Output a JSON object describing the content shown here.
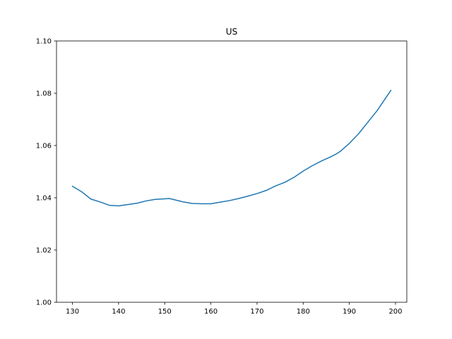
{
  "chart_data": {
    "type": "line",
    "title": "US",
    "xlabel": "",
    "ylabel": "",
    "xlim": [
      126.55,
      202.45
    ],
    "ylim": [
      1.0,
      1.1
    ],
    "xticks": [
      130,
      140,
      150,
      160,
      170,
      180,
      190,
      200
    ],
    "yticks": [
      1.0,
      1.02,
      1.04,
      1.06,
      1.08,
      1.1
    ],
    "ytick_labels": [
      "1.00",
      "1.02",
      "1.04",
      "1.06",
      "1.08",
      "1.10"
    ],
    "grid": false,
    "legend": "none",
    "series": [
      {
        "color": "#1f77b4",
        "x": [
          130,
          132,
          134,
          136,
          138,
          140,
          142,
          144,
          146,
          148,
          150,
          151,
          152,
          154,
          156,
          158,
          160,
          162,
          164,
          166,
          168,
          170,
          172,
          174,
          176,
          178,
          180,
          182,
          184,
          186,
          187,
          188,
          190,
          192,
          194,
          196,
          198,
          199
        ],
        "y": [
          1.0444,
          1.0423,
          1.0395,
          1.0384,
          1.0371,
          1.0369,
          1.0374,
          1.0379,
          1.0388,
          1.0394,
          1.0396,
          1.0397,
          1.0393,
          1.0384,
          1.0378,
          1.0377,
          1.0377,
          1.0383,
          1.0389,
          1.0397,
          1.0406,
          1.0416,
          1.0428,
          1.0445,
          1.0459,
          1.0478,
          1.0502,
          1.0523,
          1.0541,
          1.0557,
          1.0566,
          1.0577,
          1.0608,
          1.0645,
          1.0689,
          1.0733,
          1.0785,
          1.0811
        ]
      }
    ]
  }
}
